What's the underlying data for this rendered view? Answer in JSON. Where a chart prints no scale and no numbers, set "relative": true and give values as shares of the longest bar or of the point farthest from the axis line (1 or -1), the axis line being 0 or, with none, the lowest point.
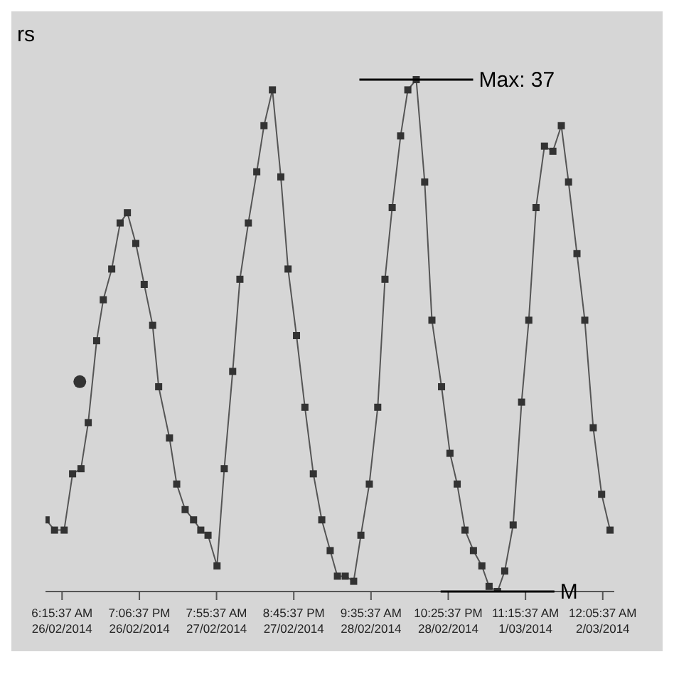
{
  "chart_data": {
    "type": "line",
    "relative": true,
    "marker": "square",
    "line_style": "solid",
    "xlim": [
      "2014-02-26T03:30",
      "2014-03-02T02:00"
    ],
    "xticks": [
      {
        "value": "2014-02-26T06:15",
        "label": "6:15:37 AM\n26/02/2014"
      },
      {
        "value": "2014-02-26T19:06",
        "label": "7:06:37 PM\n26/02/2014"
      },
      {
        "value": "2014-02-27T07:55",
        "label": "7:55:37 AM\n27/02/2014"
      },
      {
        "value": "2014-02-27T20:45",
        "label": "8:45:37 PM\n27/02/2014"
      },
      {
        "value": "2014-02-28T09:35",
        "label": "9:35:37 AM\n28/02/2014"
      },
      {
        "value": "2014-02-28T22:25",
        "label": "10:25:37 PM\n28/02/2014"
      },
      {
        "value": "2014-03-01T11:15",
        "label": "11:15:37 AM\n1/03/2014"
      },
      {
        "value": "2014-03-02T00:05",
        "label": "12:05:37 AM\n2/03/2014"
      }
    ],
    "series": [
      {
        "color": "#555555",
        "x": [
          "2014-02-26T03:36",
          "2014-02-26T05:00",
          "2014-02-26T06:36",
          "2014-02-26T08:00",
          "2014-02-26T09:24",
          "2014-02-26T10:36",
          "2014-02-26T12:00",
          "2014-02-26T13:06",
          "2014-02-26T14:30",
          "2014-02-26T15:54",
          "2014-02-26T17:06",
          "2014-02-26T18:30",
          "2014-02-26T19:54",
          "2014-02-26T21:18",
          "2014-02-26T22:18",
          "2014-02-27T00:06",
          "2014-02-27T01:18",
          "2014-02-27T02:42",
          "2014-02-27T04:06",
          "2014-02-27T05:18",
          "2014-02-27T06:30",
          "2014-02-27T08:00",
          "2014-02-27T09:12",
          "2014-02-27T10:36",
          "2014-02-27T11:48",
          "2014-02-27T13:12",
          "2014-02-27T14:36",
          "2014-02-27T15:48",
          "2014-02-27T17:12",
          "2014-02-27T18:36",
          "2014-02-27T19:48",
          "2014-02-27T21:12",
          "2014-02-27T22:36",
          "2014-02-28T00:00",
          "2014-02-28T01:24",
          "2014-02-28T02:48",
          "2014-02-28T04:00",
          "2014-02-28T05:18",
          "2014-02-28T06:42",
          "2014-02-28T07:54",
          "2014-02-28T09:18",
          "2014-02-28T10:42",
          "2014-02-28T11:54",
          "2014-02-28T13:06",
          "2014-02-28T14:30",
          "2014-02-28T15:42",
          "2014-02-28T17:06",
          "2014-02-28T18:30",
          "2014-02-28T19:42",
          "2014-02-28T21:18",
          "2014-02-28T22:42",
          "2014-02-28T23:54",
          "2014-03-01T01:12",
          "2014-03-01T02:36",
          "2014-03-01T04:00",
          "2014-03-01T05:12",
          "2014-03-01T06:36",
          "2014-03-01T07:48",
          "2014-03-01T09:12",
          "2014-03-01T10:36",
          "2014-03-01T11:48",
          "2014-03-01T13:00",
          "2014-03-01T14:24",
          "2014-03-01T15:48",
          "2014-03-01T17:12",
          "2014-03-01T18:24",
          "2014-03-01T19:48",
          "2014-03-01T21:06",
          "2014-03-01T22:30",
          "2014-03-01T23:54",
          "2014-03-02T01:18"
        ],
        "values": [
          0.14,
          0.12,
          0.12,
          0.23,
          0.24,
          0.33,
          0.49,
          0.57,
          0.63,
          0.72,
          0.74,
          0.68,
          0.6,
          0.52,
          0.4,
          0.3,
          0.21,
          0.16,
          0.14,
          0.12,
          0.11,
          0.05,
          0.24,
          0.43,
          0.61,
          0.72,
          0.82,
          0.91,
          0.98,
          0.81,
          0.63,
          0.5,
          0.36,
          0.23,
          0.14,
          0.08,
          0.03,
          0.03,
          0.02,
          0.11,
          0.21,
          0.36,
          0.61,
          0.75,
          0.89,
          0.98,
          1,
          0.8,
          0.53,
          0.4,
          0.27,
          0.21,
          0.12,
          0.08,
          0.05,
          0.01,
          0,
          0.04,
          0.13,
          0.37,
          0.53,
          0.75,
          0.87,
          0.86,
          0.91,
          0.8,
          0.66,
          0.53,
          0.32,
          0.19,
          0.12
        ]
      },
      {
        "type": "scatter",
        "marker": "circle",
        "color": "#333333",
        "x": [
          "2014-02-26T09:12"
        ],
        "values": [
          0.41
        ]
      }
    ],
    "annotations": [
      {
        "text": "Max: 37",
        "x": "2014-02-28T17:06",
        "y": 1
      },
      {
        "text": "M",
        "x": "2014-03-01T06:36",
        "y": 0
      },
      "rs"
    ]
  }
}
